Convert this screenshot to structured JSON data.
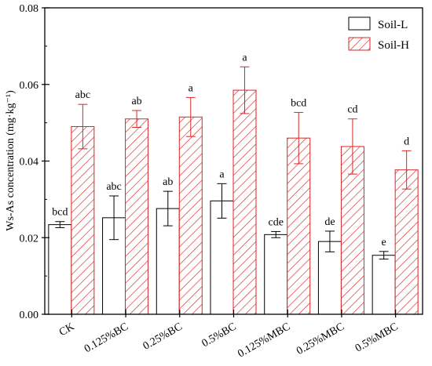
{
  "chart_data": {
    "type": "bar",
    "title": "",
    "xlabel": "",
    "ylabel": "Ws-As concentration (mg·kg⁻¹)",
    "ylim": [
      0.0,
      0.08
    ],
    "yticks": [
      "0.00",
      "0.02",
      "0.04",
      "0.06",
      "0.08"
    ],
    "categories": [
      "CK",
      "0.125%BC",
      "0.25%BC",
      "0.5%BC",
      "0.125%MBC",
      "0.25%MBC",
      "0.5%MBC"
    ],
    "legend_position": "top-right",
    "series": [
      {
        "name": "Soil-L",
        "color": "#000000",
        "fill": "none",
        "values": [
          0.0234,
          0.0252,
          0.0276,
          0.0296,
          0.0208,
          0.019,
          0.0154
        ],
        "errors": [
          0.0008,
          0.0057,
          0.0045,
          0.0045,
          0.0008,
          0.0027,
          0.001
        ],
        "letters": [
          "bcd",
          "abc",
          "ab",
          "a",
          "cde",
          "de",
          "e"
        ]
      },
      {
        "name": "Soil-H",
        "color": "#d62728",
        "fill": "hatched",
        "values": [
          0.049,
          0.051,
          0.0515,
          0.0585,
          0.046,
          0.0438,
          0.0377
        ],
        "errors": [
          0.0058,
          0.0022,
          0.0051,
          0.0061,
          0.0067,
          0.0072,
          0.005
        ],
        "letters": [
          "abc",
          "ab",
          "a",
          "a",
          "bcd",
          "cd",
          "d"
        ]
      }
    ]
  }
}
